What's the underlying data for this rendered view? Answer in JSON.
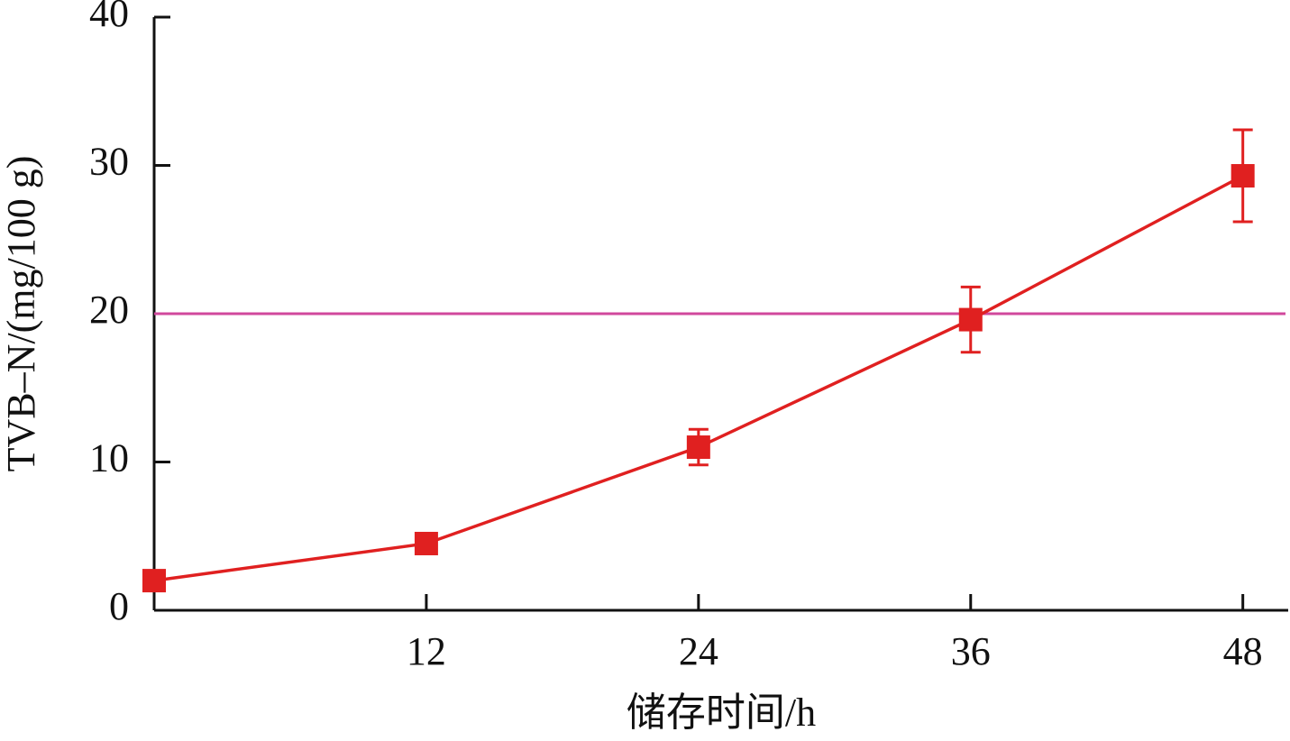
{
  "chart_data": {
    "type": "line",
    "x_label": "储存时间/h",
    "y_label": "TVB–N/(mg/100 g)",
    "x": [
      0,
      12,
      24,
      36,
      48
    ],
    "series": [
      {
        "color": "#e02020",
        "values": [
          2.0,
          4.5,
          11.0,
          19.6,
          29.3
        ],
        "errors": [
          null,
          null,
          1.2,
          2.2,
          3.1
        ]
      }
    ],
    "reference_line": {
      "y": 20,
      "color": "#d0489c"
    },
    "xlim": [
      0,
      50
    ],
    "xticks": [
      12,
      24,
      36,
      48
    ],
    "ylim": [
      0,
      40
    ],
    "yticks": [
      0,
      10,
      20,
      30,
      40
    ],
    "grid": false
  }
}
